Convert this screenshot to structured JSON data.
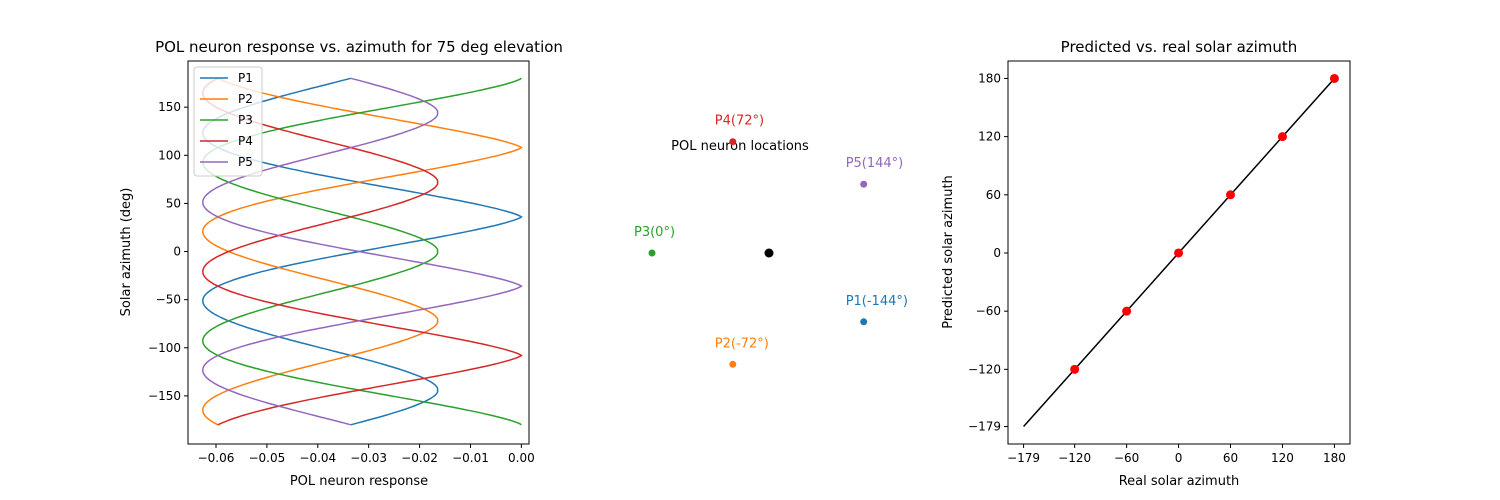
{
  "chart_data": [
    {
      "type": "line",
      "title": "POL neuron response vs. azimuth for 75 deg elevation",
      "xlabel": "POL neuron response",
      "ylabel": "Solar azimuth (deg)",
      "xlim": [
        -0.0655,
        0.0015
      ],
      "ylim": [
        -200,
        198
      ],
      "xticks": [
        -0.06,
        -0.05,
        -0.04,
        -0.03,
        -0.02,
        -0.01,
        0.0
      ],
      "xtick_labels": [
        "−0.06",
        "−0.05",
        "−0.04",
        "−0.03",
        "−0.02",
        "−0.01",
        "0.00"
      ],
      "yticks": [
        -150,
        -100,
        -50,
        0,
        50,
        100,
        150
      ],
      "ytick_labels": [
        "−150",
        "−100",
        "−50",
        "0",
        "50",
        "100",
        "150"
      ],
      "legend_position": "top-left",
      "series": [
        {
          "name": "P1",
          "color": "#1f77b4",
          "phase": -144
        },
        {
          "name": "P2",
          "color": "#ff7f0e",
          "phase": -72
        },
        {
          "name": "P3",
          "color": "#2ca02c",
          "phase": 0
        },
        {
          "name": "P4",
          "color": "#d62728",
          "phase": 72
        },
        {
          "name": "P5",
          "color": "#9467bd",
          "phase": 144
        }
      ]
    },
    {
      "type": "scatter",
      "title": "POL neuron locations",
      "center_color": "#000000",
      "points": [
        {
          "label": "P1(-144°)",
          "angle": -144,
          "color": "#1f77b4"
        },
        {
          "label": "P2(-72°)",
          "angle": -72,
          "color": "#ff7f0e"
        },
        {
          "label": "P3(0°)",
          "angle": 0,
          "color": "#2ca02c"
        },
        {
          "label": "P4(72°)",
          "angle": 72,
          "color": "#d62728"
        },
        {
          "label": "P5(144°)",
          "angle": 144,
          "color": "#9467bd"
        }
      ]
    },
    {
      "type": "scatter",
      "title": "Predicted vs. real solar azimuth",
      "xlabel": "Real solar azimuth",
      "ylabel": "Predicted solar azimuth",
      "xlim": [
        -197,
        198
      ],
      "ylim": [
        -197,
        198
      ],
      "xticks": [
        -179,
        -120,
        -60,
        0,
        60,
        120,
        180
      ],
      "xtick_labels": [
        "−179",
        "−120",
        "−60",
        "0",
        "60",
        "120",
        "180"
      ],
      "yticks": [
        -179,
        -120,
        -60,
        0,
        60,
        120,
        180
      ],
      "ytick_labels": [
        "−179",
        "−120",
        "−60",
        "0",
        "60",
        "120",
        "180"
      ],
      "line": {
        "x": [
          -179,
          180
        ],
        "y": [
          -179,
          180
        ],
        "color": "#000000"
      },
      "points": {
        "x": [
          -120,
          -60,
          0,
          60,
          120,
          180
        ],
        "y": [
          -120,
          -60,
          0,
          60,
          120,
          180
        ],
        "color": "#ff0000"
      }
    }
  ]
}
